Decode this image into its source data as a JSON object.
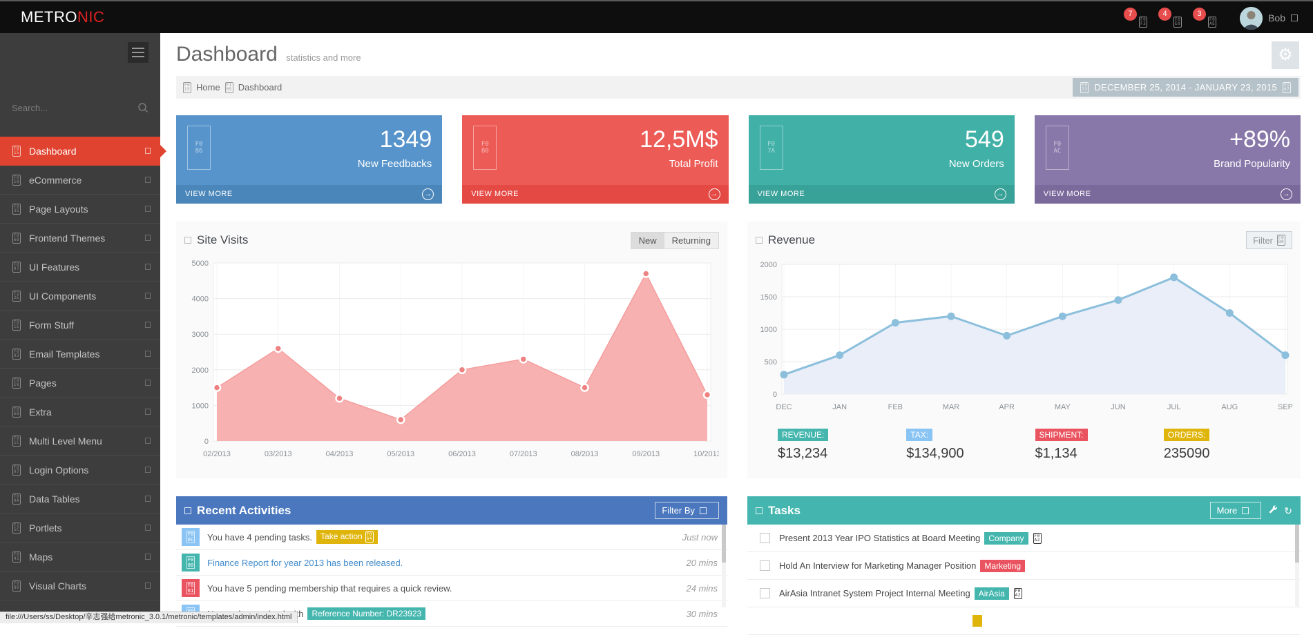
{
  "topbar": {
    "logo": {
      "part1": "METRO",
      "part2": "NIC",
      "accent_color": "#e02222"
    },
    "notifications": [
      {
        "count": "7",
        "icon_glyph": "F0F3"
      },
      {
        "count": "4",
        "icon_glyph": "F0E0"
      },
      {
        "count": "3",
        "icon_glyph": "F0AE"
      }
    ],
    "user": {
      "name": "Bob"
    }
  },
  "sidebar": {
    "search_placeholder": "Search...",
    "items": [
      {
        "label": "Dashboard",
        "glyph": "F015",
        "active": true
      },
      {
        "label": "eCommerce",
        "glyph": "F018"
      },
      {
        "label": "Page Layouts",
        "glyph": "F035"
      },
      {
        "label": "Frontend Themes",
        "glyph": "F068"
      },
      {
        "label": "UI Features",
        "glyph": "F097"
      },
      {
        "label": "UI Components",
        "glyph": "F12E"
      },
      {
        "label": "Form Stuff",
        "glyph": "F0CE"
      },
      {
        "label": "Email Templates",
        "glyph": "F003"
      },
      {
        "label": "Pages",
        "glyph": "F0E8"
      },
      {
        "label": "Extra",
        "glyph": "F06B"
      },
      {
        "label": "Multi Level Menu",
        "glyph": "F01C"
      },
      {
        "label": "Login Options",
        "glyph": "F007"
      },
      {
        "label": "Data Tables",
        "glyph": "F00A"
      },
      {
        "label": "Portlets",
        "glyph": "F15C"
      },
      {
        "label": "Maps",
        "glyph": "F041"
      },
      {
        "label": "Visual Charts",
        "glyph": "F080"
      }
    ]
  },
  "page": {
    "title": "Dashboard",
    "subtitle": "statistics and more",
    "breadcrumb": {
      "home": "Home",
      "home_glyph": "F015",
      "sep_glyph": "F105",
      "current": "Dashboard"
    },
    "date_range": {
      "label": "DECEMBER 25, 2014 - JANUARY 23, 2015",
      "cal_glyph": "F073",
      "caret_glyph": "F107"
    }
  },
  "tiles": [
    {
      "value": "1349",
      "label": "New Feedbacks",
      "footer": "VIEW MORE",
      "glyph": "F086",
      "color": "#5794cb",
      "footer_color": "#4a86ba"
    },
    {
      "value": "12,5M$",
      "label": "Total Profit",
      "footer": "VIEW MORE",
      "glyph": "F080",
      "color": "#ed5b56",
      "footer_color": "#e44944"
    },
    {
      "value": "549",
      "label": "New Orders",
      "footer": "VIEW MORE",
      "glyph": "F07A",
      "color": "#41b0a7",
      "footer_color": "#38a198"
    },
    {
      "value": "+89%",
      "label": "Brand Popularity",
      "footer": "VIEW MORE",
      "glyph": "F0AC",
      "color": "#8877a9",
      "footer_color": "#7a699b"
    }
  ],
  "site_visits": {
    "title": "Site Visits",
    "btn_new": "New",
    "btn_returning": "Returning"
  },
  "revenue": {
    "title": "Revenue",
    "filter_label": "Filter",
    "filter_glyph": "F0B0",
    "stats": [
      {
        "label": "REVENUE:",
        "value": "$13,234",
        "color": "#44b6ae"
      },
      {
        "label": "TAX:",
        "value": "$134,900",
        "color": "#89c4f4"
      },
      {
        "label": "SHIPMENT:",
        "value": "$1,134",
        "color": "#ea5460"
      },
      {
        "label": "ORDERS:",
        "value": "235090",
        "color": "#e0b50b"
      }
    ]
  },
  "activities": {
    "title": "Recent Activities",
    "filter_label": "Filter By",
    "rows": [
      {
        "icon_glyph": "F06C",
        "icon_color": "#89c4f4",
        "text": "You have 4 pending tasks.",
        "badge": "Take action",
        "badge_glyph": "F064",
        "badge_color": "#e0b50b",
        "time": "Just now"
      },
      {
        "icon_glyph": "F080",
        "icon_color": "#44b6ae",
        "text": "Finance Report for year 2013 has been released.",
        "time": "20 mins"
      },
      {
        "icon_glyph": "F061",
        "icon_color": "#ea5460",
        "text": "You have 5 pending membership that requires a quick review.",
        "time": "24 mins"
      },
      {
        "icon_glyph": "F07A",
        "icon_color": "#89c4f4",
        "text": "New order received with",
        "badge": "Reference Number: DR23923",
        "badge_color": "#44b6ae",
        "time": "30 mins"
      }
    ]
  },
  "tasks": {
    "title": "Tasks",
    "more_label": "More",
    "rows": [
      {
        "text": "Present 2013 Year IPO Statistics at Board Meeting",
        "badge": "Company",
        "badge_color": "#44b6ae",
        "suffix_glyph": "F0A2"
      },
      {
        "text": "Hold An Interview for Marketing Manager Position",
        "badge": "Marketing",
        "badge_color": "#ea5460",
        "suffix_glyph": ""
      },
      {
        "text": "AirAsia Intranet System Project Internal Meeting",
        "badge": "AirAsia",
        "badge_color": "#44b6ae",
        "suffix_glyph": "F0A2"
      },
      {
        "text": "",
        "badge": "",
        "badge_color": "#e0b50b",
        "suffix_glyph": ""
      }
    ]
  },
  "status_bar": {
    "url": "file:///Users/ss/Desktop/辛志强给metronic_3.0.1/metronic/templates/admin/index.html"
  },
  "chart_data": [
    {
      "type": "area",
      "title": "Site Visits",
      "categories": [
        "02/2013",
        "03/2013",
        "04/2013",
        "05/2013",
        "06/2013",
        "07/2013",
        "08/2013",
        "09/2013",
        "10/2013"
      ],
      "values": [
        1500,
        2600,
        1200,
        600,
        2000,
        2300,
        1500,
        4700,
        1300
      ],
      "xlabel": "",
      "ylabel": "",
      "ylim": [
        0,
        5000
      ],
      "ytick": 1000,
      "grid": true,
      "legend_position": "none",
      "fill": "#f8b1b1",
      "line": "#f59c9c",
      "dot": "#ee8282"
    },
    {
      "type": "line",
      "title": "Revenue",
      "categories": [
        "DEC",
        "JAN",
        "FEB",
        "MAR",
        "APR",
        "MAY",
        "JUN",
        "JUL",
        "AUG",
        "SEP"
      ],
      "values": [
        300,
        600,
        1100,
        1200,
        900,
        1200,
        1450,
        1800,
        1250,
        600
      ],
      "xlabel": "",
      "ylabel": "",
      "ylim": [
        0,
        2000
      ],
      "ytick": 500,
      "grid": true,
      "legend_position": "none",
      "fill": "#e9eef8",
      "line": "#8cbfdc",
      "dot": "#8cbfdc"
    }
  ]
}
